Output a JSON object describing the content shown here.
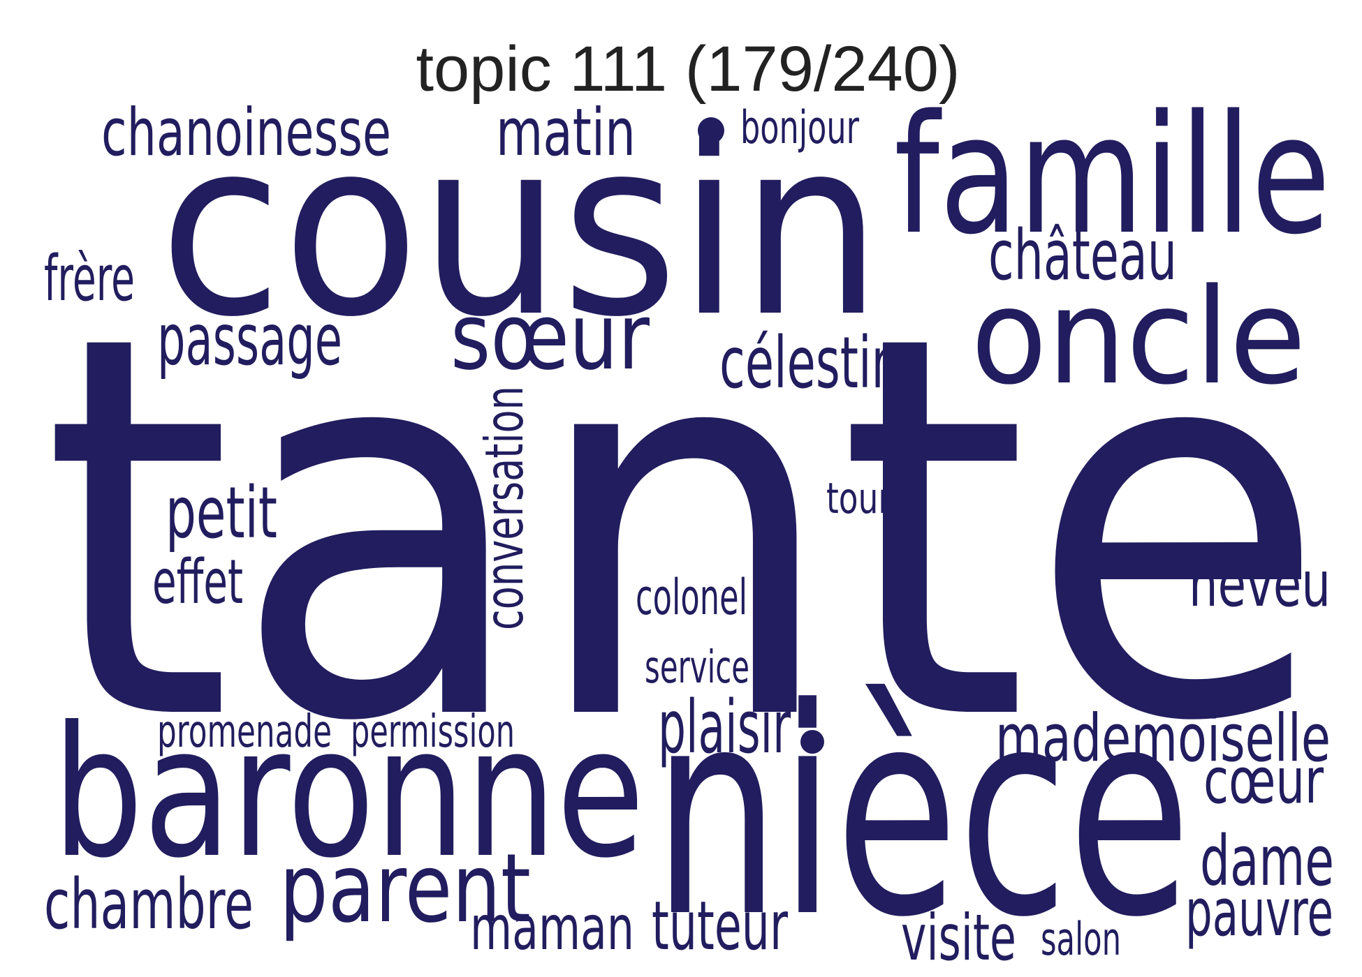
{
  "title": "topic 111 (179/240)",
  "colors": {
    "words": "#211d5e",
    "title": "#222222",
    "background": "#ffffff"
  },
  "words": [
    {
      "id": "tante",
      "text": "tante"
    },
    {
      "id": "cousin",
      "text": "cousin"
    },
    {
      "id": "niece",
      "text": "nièce"
    },
    {
      "id": "famille",
      "text": "famille"
    },
    {
      "id": "baronne",
      "text": "baronne"
    },
    {
      "id": "oncle",
      "text": "oncle"
    },
    {
      "id": "parent",
      "text": "parent"
    },
    {
      "id": "soeur",
      "text": "sœur"
    },
    {
      "id": "chanoinesse",
      "text": "chanoinesse"
    },
    {
      "id": "matin",
      "text": "matin"
    },
    {
      "id": "bonjour",
      "text": "bonjour"
    },
    {
      "id": "chateau",
      "text": "château"
    },
    {
      "id": "frere",
      "text": "frère"
    },
    {
      "id": "passage",
      "text": "passage"
    },
    {
      "id": "celestin",
      "text": "célestin"
    },
    {
      "id": "conversation",
      "text": "conversation"
    },
    {
      "id": "tour",
      "text": "tour"
    },
    {
      "id": "petit",
      "text": "petit"
    },
    {
      "id": "effet",
      "text": "effet"
    },
    {
      "id": "colonel",
      "text": "colonel"
    },
    {
      "id": "neveu",
      "text": "neveu"
    },
    {
      "id": "service",
      "text": "service"
    },
    {
      "id": "promenade",
      "text": "promenade"
    },
    {
      "id": "permission",
      "text": "permission"
    },
    {
      "id": "plaisir",
      "text": "plaisir"
    },
    {
      "id": "mademoiselle",
      "text": "mademoiselle"
    },
    {
      "id": "coeur",
      "text": "cœur"
    },
    {
      "id": "dame",
      "text": "dame"
    },
    {
      "id": "chambre",
      "text": "chambre"
    },
    {
      "id": "maman",
      "text": "maman"
    },
    {
      "id": "tuteur",
      "text": "tuteur"
    },
    {
      "id": "visite",
      "text": "visite"
    },
    {
      "id": "salon",
      "text": "salon"
    },
    {
      "id": "pauvre",
      "text": "pauvre"
    }
  ]
}
